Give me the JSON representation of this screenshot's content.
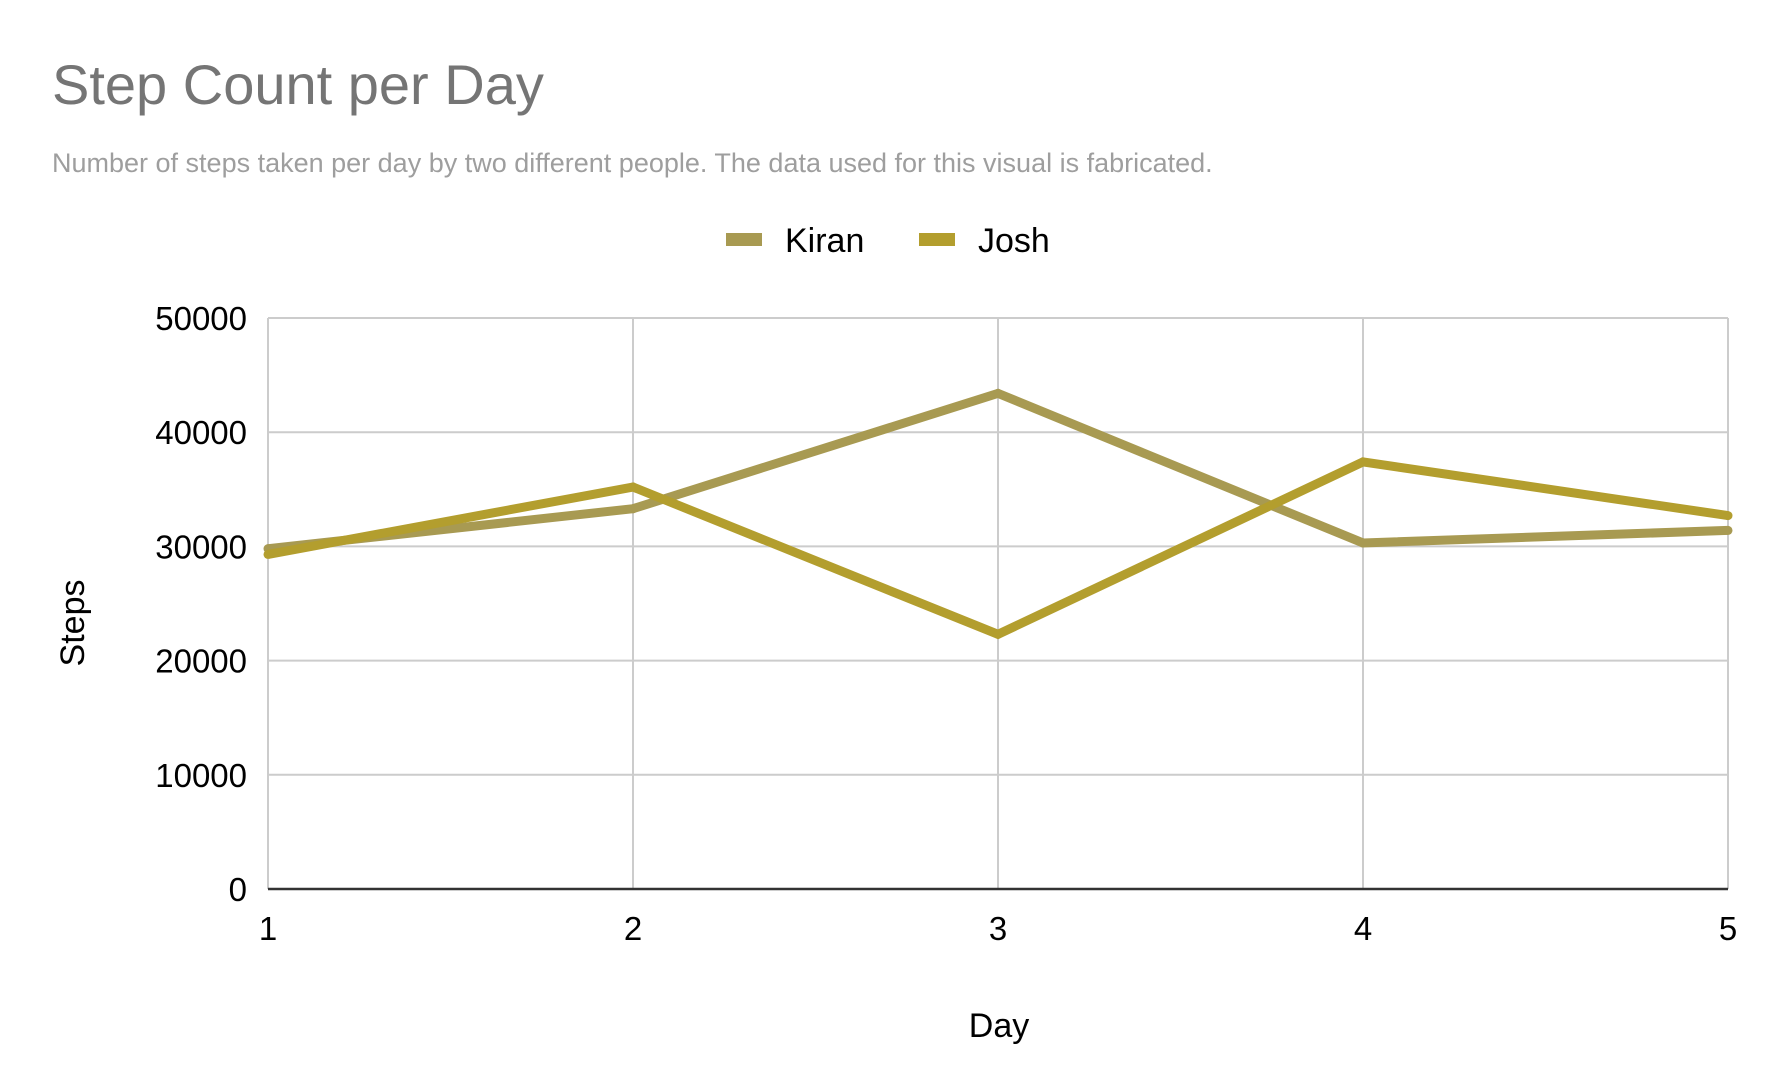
{
  "chart_data": {
    "type": "line",
    "title": "Step Count per Day",
    "subtitle": "Number of steps taken per day by two different people. The data used for this visual is fabricated.",
    "xlabel": "Day",
    "ylabel": "Steps",
    "x": [
      1,
      2,
      3,
      4,
      5
    ],
    "xticks": [
      "1",
      "2",
      "3",
      "4",
      "5"
    ],
    "yticks": [
      "0",
      "10000",
      "20000",
      "30000",
      "40000",
      "50000"
    ],
    "xlim": [
      1,
      5
    ],
    "ylim": [
      0,
      50000
    ],
    "grid": true,
    "legend_position": "top",
    "series": [
      {
        "name": "Kiran",
        "color": "#a89a52",
        "values": [
          29800,
          33300,
          43400,
          30300,
          31400
        ]
      },
      {
        "name": "Josh",
        "color": "#b39e2e",
        "values": [
          29300,
          35200,
          22300,
          37400,
          32700
        ]
      }
    ]
  }
}
